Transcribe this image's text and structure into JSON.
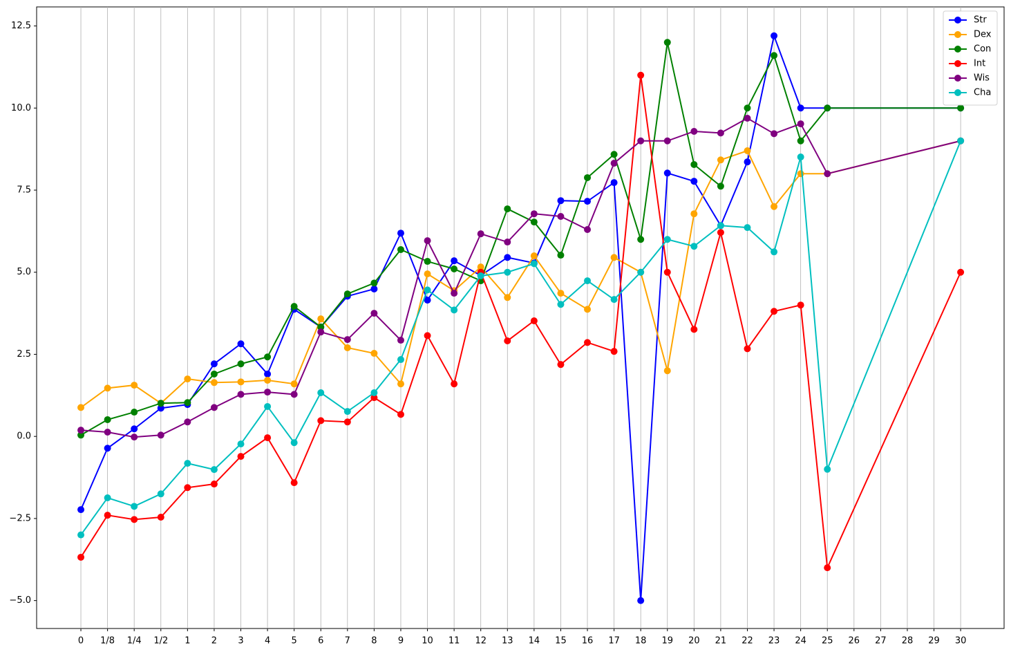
{
  "chart_data": {
    "type": "line",
    "x": [
      0,
      1,
      2,
      3,
      4,
      5,
      6,
      7,
      8,
      9,
      10,
      11,
      12,
      13,
      14,
      15,
      16,
      17,
      18,
      19,
      20,
      21,
      22,
      23,
      24,
      25,
      26,
      27,
      28,
      33
    ],
    "xticks": [
      {
        "value": 0,
        "label": "0"
      },
      {
        "value": 1,
        "label": "1/8"
      },
      {
        "value": 2,
        "label": "1/4"
      },
      {
        "value": 3,
        "label": "1/2"
      },
      {
        "value": 4,
        "label": "1"
      },
      {
        "value": 5,
        "label": "2"
      },
      {
        "value": 6,
        "label": "3"
      },
      {
        "value": 7,
        "label": "4"
      },
      {
        "value": 8,
        "label": "5"
      },
      {
        "value": 9,
        "label": "6"
      },
      {
        "value": 10,
        "label": "7"
      },
      {
        "value": 11,
        "label": "8"
      },
      {
        "value": 12,
        "label": "9"
      },
      {
        "value": 13,
        "label": "10"
      },
      {
        "value": 14,
        "label": "11"
      },
      {
        "value": 15,
        "label": "12"
      },
      {
        "value": 16,
        "label": "13"
      },
      {
        "value": 17,
        "label": "14"
      },
      {
        "value": 18,
        "label": "15"
      },
      {
        "value": 19,
        "label": "16"
      },
      {
        "value": 20,
        "label": "17"
      },
      {
        "value": 21,
        "label": "18"
      },
      {
        "value": 22,
        "label": "19"
      },
      {
        "value": 23,
        "label": "20"
      },
      {
        "value": 24,
        "label": "21"
      },
      {
        "value": 25,
        "label": "22"
      },
      {
        "value": 26,
        "label": "23"
      },
      {
        "value": 27,
        "label": "24"
      },
      {
        "value": 28,
        "label": "25"
      },
      {
        "value": 29,
        "label": "26"
      },
      {
        "value": 30,
        "label": "27"
      },
      {
        "value": 31,
        "label": "28"
      },
      {
        "value": 32,
        "label": "29"
      },
      {
        "value": 33,
        "label": "30"
      }
    ],
    "xlim": [
      -1.66,
      34.63
    ],
    "ylim": [
      -5.85,
      13.08
    ],
    "yticks": [
      {
        "value": -5,
        "label": "−5.0"
      },
      {
        "value": -2.5,
        "label": "−2.5"
      },
      {
        "value": 0,
        "label": "0.0"
      },
      {
        "value": 2.5,
        "label": "2.5"
      },
      {
        "value": 5,
        "label": "5.0"
      },
      {
        "value": 7.5,
        "label": "7.5"
      },
      {
        "value": 10,
        "label": "10.0"
      },
      {
        "value": 12.5,
        "label": "12.5"
      }
    ],
    "grid": "x",
    "legend": "upper right",
    "series": [
      {
        "name": "Str",
        "color": "#0000ff",
        "values": [
          -2.23,
          -0.36,
          0.23,
          0.86,
          0.97,
          2.21,
          2.82,
          1.9,
          3.87,
          3.33,
          4.27,
          4.49,
          6.19,
          4.15,
          5.35,
          4.9,
          5.45,
          5.28,
          7.18,
          7.16,
          7.73,
          -5,
          8.02,
          7.77,
          6.42,
          8.36,
          12.2,
          10,
          10,
          10
        ]
      },
      {
        "name": "Dex",
        "color": "#ffa500",
        "values": [
          0.88,
          1.47,
          1.56,
          1.01,
          1.75,
          1.64,
          1.66,
          1.71,
          1.6,
          3.58,
          2.7,
          2.53,
          1.6,
          4.95,
          4.44,
          5.16,
          4.23,
          5.5,
          4.36,
          3.87,
          5.45,
          5,
          2,
          6.78,
          8.42,
          8.7,
          7,
          8,
          8,
          9
        ]
      },
      {
        "name": "Con",
        "color": "#008000",
        "values": [
          0.04,
          0.51,
          0.74,
          1.01,
          1.03,
          1.9,
          2.21,
          2.42,
          3.96,
          3.33,
          4.34,
          4.67,
          5.69,
          5.33,
          5.1,
          4.74,
          6.93,
          6.53,
          5.52,
          7.88,
          8.59,
          6,
          12,
          8.28,
          7.62,
          10,
          11.6,
          9,
          10,
          10
        ]
      },
      {
        "name": "Int",
        "color": "#ff0000",
        "values": [
          -3.68,
          -2.4,
          -2.53,
          -2.46,
          -1.56,
          -1.45,
          -0.61,
          -0.04,
          -1.41,
          0.48,
          0.44,
          1.18,
          0.67,
          3.07,
          1.6,
          5,
          2.91,
          3.52,
          2.19,
          2.86,
          2.59,
          11,
          5,
          3.26,
          6.21,
          2.67,
          3.81,
          4,
          -4,
          5
        ]
      },
      {
        "name": "Wis",
        "color": "#800080",
        "values": [
          0.19,
          0.13,
          -0.02,
          0.04,
          0.44,
          0.88,
          1.28,
          1.35,
          1.28,
          3.18,
          2.95,
          3.75,
          2.93,
          5.96,
          4.36,
          6.17,
          5.92,
          6.78,
          6.7,
          6.3,
          8.32,
          9,
          9,
          9.29,
          9.24,
          9.69,
          9.22,
          9.52,
          8,
          9
        ]
      },
      {
        "name": "Cha",
        "color": "#00bfbf",
        "values": [
          -3,
          -1.87,
          -2.13,
          -1.75,
          -0.82,
          -1.01,
          -0.23,
          0.91,
          -0.19,
          1.33,
          0.76,
          1.33,
          2.34,
          4.46,
          3.85,
          4.89,
          5,
          5.26,
          4.02,
          4.74,
          4.17,
          5,
          6,
          5.79,
          6.42,
          6.36,
          5.62,
          8.51,
          -1,
          9
        ]
      }
    ]
  }
}
